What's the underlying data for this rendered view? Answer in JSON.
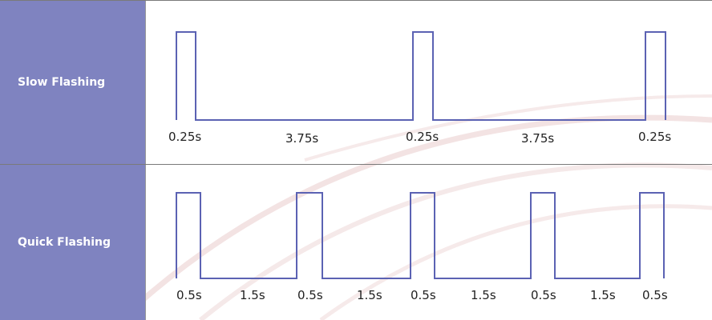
{
  "rows": [
    {
      "label": "Slow Flashing",
      "pulses": [
        {
          "on_label": "0.25s"
        },
        {
          "off_label": "3.75s"
        },
        {
          "on_label": "0.25s"
        },
        {
          "off_label": "3.75s"
        },
        {
          "on_label": "0.25s"
        }
      ]
    },
    {
      "label": "Quick Flashing",
      "pulses": [
        {
          "on_label": "0.5s"
        },
        {
          "off_label": "1.5s"
        },
        {
          "on_label": "0.5s"
        },
        {
          "off_label": "1.5s"
        },
        {
          "on_label": "0.5s"
        },
        {
          "off_label": "1.5s"
        },
        {
          "on_label": "0.5s"
        },
        {
          "off_label": "1.5s"
        },
        {
          "on_label": "0.5s"
        }
      ]
    }
  ],
  "colors": {
    "label_bg": "#7f83c0",
    "label_text": "#ffffff",
    "signal": "#5b62b3",
    "swirl": "#f1dede"
  }
}
